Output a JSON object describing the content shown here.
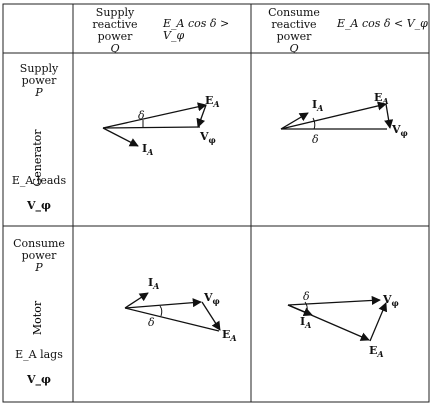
{
  "header": {
    "supply_q": {
      "line1": "Supply",
      "line2": "reactive power",
      "sym": "Q"
    },
    "supply_cond": "E_A cos δ > V_φ",
    "consume_q": {
      "line1": "Consume",
      "line2": "reactive power",
      "sym": "Q"
    },
    "consume_cond": "E_A cos δ < V_φ"
  },
  "rows": [
    {
      "power": {
        "line1": "Supply",
        "line2": "power",
        "sym": "P"
      },
      "mode": "Generator",
      "relation": "E_A leads",
      "ref": "V_φ"
    },
    {
      "power": {
        "line1": "Consume",
        "line2": "power",
        "sym": "P"
      },
      "mode": "Motor",
      "relation": "E_A lags",
      "ref": "V_φ"
    }
  ],
  "phasor_labels": {
    "ea": "E",
    "ea_sub": "A",
    "ia": "I",
    "ia_sub": "A",
    "v": "V",
    "v_sub": "φ",
    "delta": "δ"
  },
  "colors": {
    "line": "#111111",
    "grid": "#222222"
  }
}
